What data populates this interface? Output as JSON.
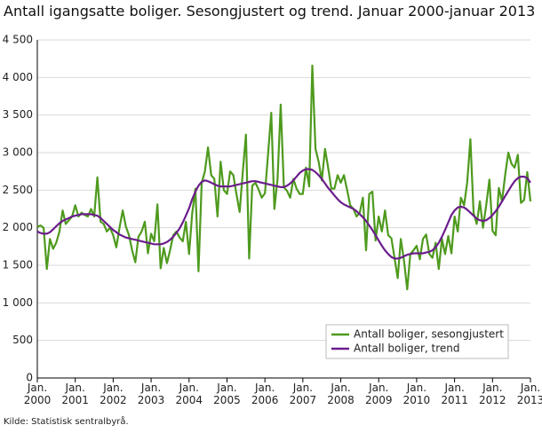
{
  "chart_data": {
    "type": "line",
    "title": "Antall igangsatte boliger. Sesongjustert og trend. Januar 2000-januar 2013",
    "source": "Kilde: Statistisk sentralbyrå.",
    "categories": [
      "Jan. 2000",
      null,
      null,
      null,
      null,
      null,
      null,
      null,
      null,
      null,
      null,
      null,
      "Jan. 2001",
      null,
      null,
      null,
      null,
      null,
      null,
      null,
      null,
      null,
      null,
      null,
      "Jan. 2002",
      null,
      null,
      null,
      null,
      null,
      null,
      null,
      null,
      null,
      null,
      null,
      "Jan. 2003",
      null,
      null,
      null,
      null,
      null,
      null,
      null,
      null,
      null,
      null,
      null,
      "Jan. 2004",
      null,
      null,
      null,
      null,
      null,
      null,
      null,
      null,
      null,
      null,
      null,
      "Jan. 2005",
      null,
      null,
      null,
      null,
      null,
      null,
      null,
      null,
      null,
      null,
      null,
      "Jan. 2006",
      null,
      null,
      null,
      null,
      null,
      null,
      null,
      null,
      null,
      null,
      null,
      "Jan. 2007",
      null,
      null,
      null,
      null,
      null,
      null,
      null,
      null,
      null,
      null,
      null,
      "Jan. 2008",
      null,
      null,
      null,
      null,
      null,
      null,
      null,
      null,
      null,
      null,
      null,
      "Jan. 2009",
      null,
      null,
      null,
      null,
      null,
      null,
      null,
      null,
      null,
      null,
      null,
      "Jan. 2010",
      null,
      null,
      null,
      null,
      null,
      null,
      null,
      null,
      null,
      null,
      null,
      "Jan. 2011",
      null,
      null,
      null,
      null,
      null,
      null,
      null,
      null,
      null,
      null,
      null,
      "Jan. 2012",
      null,
      null,
      null,
      null,
      null,
      null,
      null,
      null,
      null,
      null,
      null,
      "Jan. 2013"
    ],
    "series": [
      {
        "name": "Antall boliger, sesongjustert",
        "color": "#4e9a1e",
        "values": [
          2010,
          2030,
          2000,
          1450,
          1850,
          1720,
          1800,
          1950,
          2230,
          2050,
          2100,
          2150,
          2300,
          2150,
          2200,
          2170,
          2150,
          2250,
          2150,
          2670,
          2080,
          2050,
          1950,
          2000,
          1900,
          1740,
          2000,
          2230,
          2020,
          1900,
          1700,
          1540,
          1880,
          1950,
          2080,
          1660,
          1920,
          1820,
          2310,
          1460,
          1730,
          1530,
          1700,
          1900,
          1950,
          1870,
          1820,
          2080,
          1650,
          2190,
          2520,
          1420,
          2600,
          2750,
          3070,
          2700,
          2650,
          2150,
          2880,
          2500,
          2450,
          2750,
          2700,
          2450,
          2210,
          2750,
          3240,
          1590,
          2560,
          2600,
          2510,
          2400,
          2460,
          2980,
          3530,
          2250,
          2650,
          3640,
          2540,
          2490,
          2400,
          2650,
          2520,
          2450,
          2450,
          2800,
          2550,
          4160,
          3050,
          2880,
          2630,
          3050,
          2800,
          2520,
          2520,
          2700,
          2600,
          2700,
          2500,
          2300,
          2250,
          2150,
          2200,
          2400,
          1700,
          2450,
          2480,
          1830,
          2150,
          1950,
          2230,
          1900,
          1860,
          1600,
          1330,
          1850,
          1560,
          1180,
          1650,
          1700,
          1760,
          1580,
          1850,
          1910,
          1650,
          1600,
          1800,
          1450,
          1850,
          1650,
          1890,
          1660,
          2150,
          1950,
          2400,
          2300,
          2600,
          3180,
          2200,
          2050,
          2350,
          2000,
          2300,
          2640,
          1960,
          1900,
          2530,
          2350,
          2700,
          3000,
          2850,
          2800,
          2970,
          2330,
          2370,
          2740,
          2350
        ]
      },
      {
        "name": "Antall boliger, trend",
        "color": "#6b1d8c",
        "values": [
          1950,
          1930,
          1920,
          1920,
          1940,
          1980,
          2020,
          2060,
          2090,
          2110,
          2130,
          2150,
          2160,
          2170,
          2180,
          2180,
          2180,
          2180,
          2170,
          2160,
          2130,
          2090,
          2050,
          2010,
          1970,
          1940,
          1910,
          1890,
          1870,
          1860,
          1850,
          1840,
          1830,
          1820,
          1810,
          1800,
          1790,
          1780,
          1780,
          1780,
          1790,
          1810,
          1840,
          1880,
          1930,
          1990,
          2070,
          2160,
          2260,
          2380,
          2480,
          2560,
          2610,
          2630,
          2620,
          2600,
          2580,
          2560,
          2550,
          2550,
          2550,
          2550,
          2560,
          2570,
          2580,
          2590,
          2600,
          2610,
          2620,
          2620,
          2610,
          2600,
          2590,
          2580,
          2570,
          2560,
          2550,
          2540,
          2540,
          2560,
          2590,
          2630,
          2680,
          2730,
          2760,
          2780,
          2780,
          2770,
          2740,
          2700,
          2650,
          2590,
          2530,
          2480,
          2430,
          2380,
          2340,
          2310,
          2290,
          2270,
          2250,
          2220,
          2180,
          2140,
          2090,
          2030,
          1970,
          1900,
          1830,
          1760,
          1700,
          1650,
          1610,
          1590,
          1590,
          1600,
          1620,
          1640,
          1650,
          1660,
          1660,
          1660,
          1660,
          1670,
          1680,
          1700,
          1740,
          1800,
          1880,
          1970,
          2070,
          2170,
          2230,
          2270,
          2280,
          2270,
          2240,
          2200,
          2160,
          2120,
          2100,
          2090,
          2100,
          2130,
          2170,
          2220,
          2280,
          2350,
          2420,
          2490,
          2560,
          2620,
          2660,
          2680,
          2680,
          2660,
          2600
        ]
      }
    ],
    "ylim": [
      0,
      4500
    ],
    "yticks": [
      0,
      500,
      {
        "value": 1000,
        "label": "1 000"
      },
      {
        "value": 1500,
        "label": "1 500"
      },
      {
        "value": 2000,
        "label": "2 000"
      },
      {
        "value": 2500,
        "label": "2 500"
      },
      {
        "value": 3000,
        "label": "3 000"
      },
      {
        "value": 3500,
        "label": "3 500"
      },
      {
        "value": 4000,
        "label": "4 000"
      },
      {
        "value": 4500,
        "label": "4 500"
      }
    ],
    "grid": true,
    "legend": "lower-right"
  }
}
